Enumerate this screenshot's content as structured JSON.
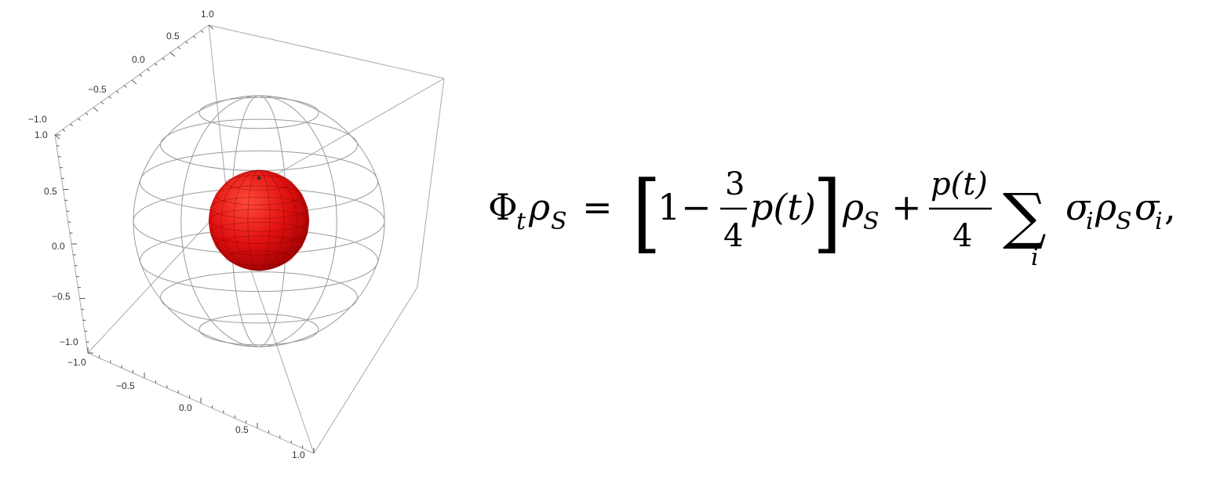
{
  "plot": {
    "axis_ticks": {
      "top_edge": [
        "1.0",
        "0.5",
        "0.0",
        "−0.5",
        "−1.0"
      ],
      "vertical_edge": [
        "1.0",
        "0.5",
        "0.0",
        "−0.5",
        "−1.0"
      ],
      "bottom_edge": [
        "−1.0",
        "−0.5",
        "0.0",
        "0.5",
        "1.0"
      ]
    },
    "colors": {
      "inner_sphere": "#e01010",
      "wireframe": "#9a9a9a",
      "box": "#a8a8a8"
    }
  },
  "formula": {
    "Phi": "Φ",
    "t": "t",
    "rho": "ρ",
    "S": "S",
    "eq": "=",
    "lbracket": "[",
    "one": "1",
    "minus": "−",
    "three": "3",
    "four": "4",
    "p_of_t": "p(t)",
    "rbracket": "]",
    "plus": "+",
    "sum": "∑",
    "i": "i",
    "sigma": "σ",
    "comma": ","
  }
}
